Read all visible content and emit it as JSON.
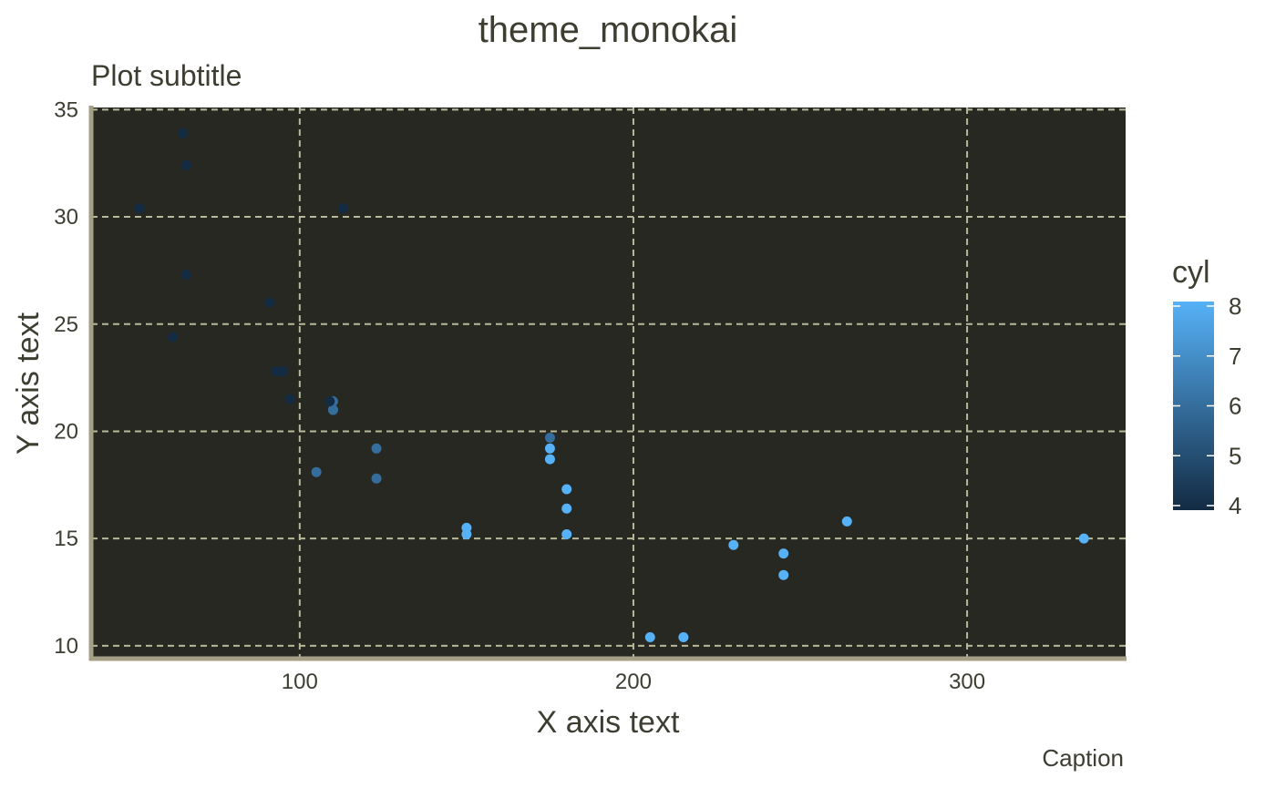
{
  "chart_data": {
    "type": "scatter",
    "title": "theme_monokai",
    "subtitle": "Plot subtitle",
    "xlabel": "X axis text",
    "ylabel": "Y axis text",
    "caption": "Caption",
    "xlim": [
      37.5,
      347.5
    ],
    "ylim": [
      9.4,
      35.1
    ],
    "x_ticks": [
      100,
      200,
      300
    ],
    "y_ticks": [
      10,
      15,
      20,
      25,
      30,
      35
    ],
    "grid": true,
    "panel_background": "#272822",
    "grid_color": "#b8b89a",
    "axis_line_color": "#a59f85",
    "legend": {
      "title": "cyl",
      "placement": "right",
      "ticks": [
        4,
        5,
        6,
        7,
        8
      ],
      "range": [
        4,
        8
      ],
      "low_color": "#132b43",
      "high_color": "#56b1f7"
    },
    "points": [
      {
        "x": 110,
        "y": 21.0,
        "cyl": 6
      },
      {
        "x": 110,
        "y": 21.0,
        "cyl": 6
      },
      {
        "x": 93,
        "y": 22.8,
        "cyl": 4
      },
      {
        "x": 110,
        "y": 21.4,
        "cyl": 6
      },
      {
        "x": 175,
        "y": 18.7,
        "cyl": 8
      },
      {
        "x": 105,
        "y": 18.1,
        "cyl": 6
      },
      {
        "x": 245,
        "y": 14.3,
        "cyl": 8
      },
      {
        "x": 62,
        "y": 24.4,
        "cyl": 4
      },
      {
        "x": 95,
        "y": 22.8,
        "cyl": 4
      },
      {
        "x": 123,
        "y": 19.2,
        "cyl": 6
      },
      {
        "x": 123,
        "y": 17.8,
        "cyl": 6
      },
      {
        "x": 180,
        "y": 16.4,
        "cyl": 8
      },
      {
        "x": 180,
        "y": 17.3,
        "cyl": 8
      },
      {
        "x": 180,
        "y": 15.2,
        "cyl": 8
      },
      {
        "x": 205,
        "y": 10.4,
        "cyl": 8
      },
      {
        "x": 215,
        "y": 10.4,
        "cyl": 8
      },
      {
        "x": 230,
        "y": 14.7,
        "cyl": 8
      },
      {
        "x": 66,
        "y": 32.4,
        "cyl": 4
      },
      {
        "x": 52,
        "y": 30.4,
        "cyl": 4
      },
      {
        "x": 65,
        "y": 33.9,
        "cyl": 4
      },
      {
        "x": 97,
        "y": 21.5,
        "cyl": 4
      },
      {
        "x": 150,
        "y": 15.5,
        "cyl": 8
      },
      {
        "x": 150,
        "y": 15.2,
        "cyl": 8
      },
      {
        "x": 245,
        "y": 13.3,
        "cyl": 8
      },
      {
        "x": 175,
        "y": 19.2,
        "cyl": 8
      },
      {
        "x": 66,
        "y": 27.3,
        "cyl": 4
      },
      {
        "x": 91,
        "y": 26.0,
        "cyl": 4
      },
      {
        "x": 113,
        "y": 30.4,
        "cyl": 4
      },
      {
        "x": 264,
        "y": 15.8,
        "cyl": 8
      },
      {
        "x": 175,
        "y": 19.7,
        "cyl": 6
      },
      {
        "x": 335,
        "y": 15.0,
        "cyl": 8
      },
      {
        "x": 109,
        "y": 21.4,
        "cyl": 4
      }
    ]
  }
}
